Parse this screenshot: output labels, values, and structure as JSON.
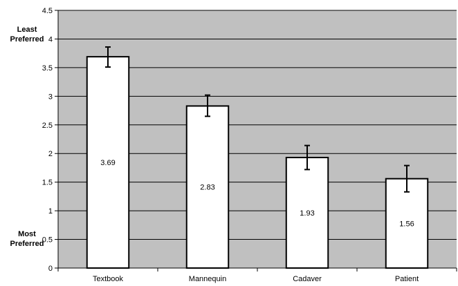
{
  "chart_data": {
    "type": "bar",
    "categories": [
      "Textbook",
      "Mannequin",
      "Cadaver",
      "Patient"
    ],
    "values": [
      3.69,
      2.83,
      1.93,
      1.56
    ],
    "error_bars": {
      "upper": [
        3.86,
        3.02,
        2.14,
        1.79
      ],
      "lower": [
        3.51,
        2.65,
        1.72,
        1.33
      ]
    },
    "data_labels": [
      "3.69",
      "2.83",
      "1.93",
      "1.56"
    ],
    "ylim": [
      0,
      4.5
    ],
    "yticks": [
      "0",
      "0.5",
      "1",
      "1.5",
      "2",
      "2.5",
      "3",
      "3.5",
      "4",
      "4.5"
    ],
    "ylabel_top": "Least Preferred",
    "ylabel_bottom": "Most Preferred",
    "grid": true,
    "legend": false,
    "colors": {
      "plot_background": "#c0c0c0",
      "bar_fill": "#ffffff",
      "bar_stroke": "#000000",
      "gridline": "#000000"
    }
  }
}
